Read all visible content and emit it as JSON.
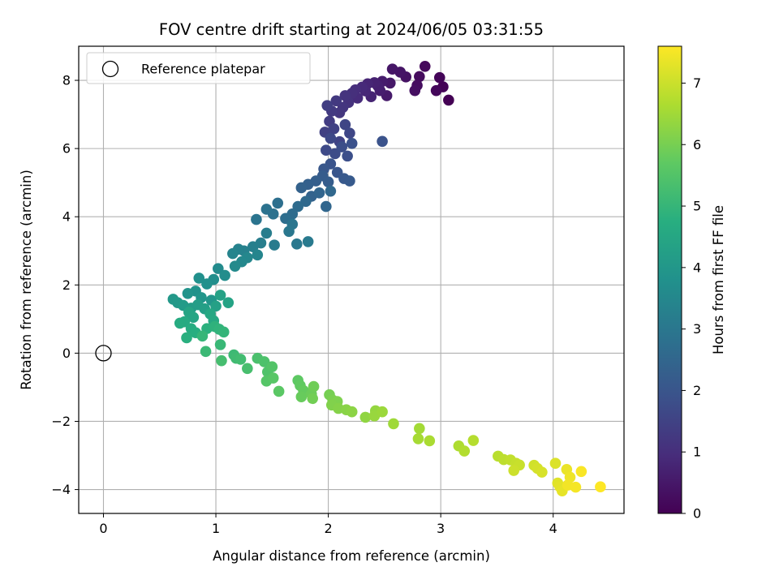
{
  "chart_data": {
    "type": "scatter",
    "title": "FOV centre drift starting at 2024/06/05 03:31:55",
    "xlabel": "Angular distance from reference (arcmin)",
    "ylabel": "Rotation from reference (arcmin)",
    "xlim": [
      -0.22,
      4.63
    ],
    "ylim": [
      -4.7,
      9.0
    ],
    "xticks": [
      "0",
      "1",
      "2",
      "3",
      "4"
    ],
    "yticks": [
      "−4",
      "−2",
      "0",
      "2",
      "4",
      "6",
      "8"
    ],
    "grid": true,
    "legend": {
      "position": "top-left",
      "label": "Reference platepar"
    },
    "colorbar": {
      "label": "Hours from first FF file",
      "range": [
        0,
        7.6
      ],
      "ticks": [
        "0",
        "1",
        "2",
        "3",
        "4",
        "5",
        "6",
        "7"
      ],
      "colormap": "viridis"
    },
    "reference_point": {
      "x": 0,
      "y": 0
    },
    "series": [
      {
        "points": [
          [
            3.07,
            7.42
          ],
          [
            3.02,
            7.81
          ],
          [
            2.99,
            8.08
          ],
          [
            2.96,
            7.7
          ],
          [
            2.86,
            8.41
          ],
          [
            2.81,
            8.11
          ],
          [
            2.79,
            7.85
          ],
          [
            2.77,
            7.7
          ],
          [
            2.69,
            8.1
          ],
          [
            2.64,
            8.24
          ],
          [
            2.57,
            8.33
          ],
          [
            2.55,
            7.92
          ],
          [
            2.52,
            7.55
          ],
          [
            2.48,
            7.97
          ],
          [
            2.46,
            7.7
          ],
          [
            2.44,
            7.84
          ],
          [
            2.41,
            7.93
          ],
          [
            2.38,
            7.52
          ],
          [
            2.35,
            7.9
          ],
          [
            2.33,
            7.69
          ],
          [
            2.3,
            7.8
          ],
          [
            2.26,
            7.48
          ],
          [
            2.24,
            7.72
          ],
          [
            2.21,
            7.62
          ],
          [
            2.18,
            7.35
          ],
          [
            2.15,
            7.55
          ],
          [
            2.13,
            7.21
          ],
          [
            2.1,
            7.05
          ],
          [
            2.07,
            7.4
          ],
          [
            2.03,
            7.1
          ],
          [
            2.01,
            6.8
          ],
          [
            1.99,
            7.26
          ],
          [
            1.97,
            6.48
          ],
          [
            2.05,
            6.58
          ],
          [
            2.1,
            6.2
          ],
          [
            2.15,
            6.7
          ],
          [
            2.19,
            6.45
          ],
          [
            2.02,
            6.3
          ],
          [
            1.98,
            5.95
          ],
          [
            2.06,
            5.85
          ],
          [
            2.12,
            6.05
          ],
          [
            2.17,
            5.78
          ],
          [
            2.21,
            6.15
          ],
          [
            2.48,
            6.21
          ],
          [
            2.02,
            5.55
          ],
          [
            2.08,
            5.3
          ],
          [
            1.96,
            5.4
          ],
          [
            2.14,
            5.12
          ],
          [
            2.19,
            5.05
          ],
          [
            1.95,
            5.2
          ],
          [
            2.0,
            5.02
          ],
          [
            1.89,
            5.05
          ],
          [
            1.82,
            4.95
          ],
          [
            1.76,
            4.85
          ],
          [
            1.85,
            4.6
          ],
          [
            1.92,
            4.7
          ],
          [
            1.98,
            4.3
          ],
          [
            2.02,
            4.75
          ],
          [
            1.8,
            4.45
          ],
          [
            1.73,
            4.3
          ],
          [
            1.68,
            4.08
          ],
          [
            1.62,
            3.95
          ],
          [
            1.55,
            4.4
          ],
          [
            1.51,
            4.08
          ],
          [
            1.45,
            4.22
          ],
          [
            1.36,
            3.92
          ],
          [
            1.68,
            3.78
          ],
          [
            1.65,
            3.57
          ],
          [
            1.72,
            3.2
          ],
          [
            1.82,
            3.27
          ],
          [
            1.52,
            3.17
          ],
          [
            1.45,
            3.52
          ],
          [
            1.4,
            3.23
          ],
          [
            1.33,
            3.12
          ],
          [
            1.25,
            3.0
          ],
          [
            1.2,
            3.05
          ],
          [
            1.15,
            2.92
          ],
          [
            1.37,
            2.88
          ],
          [
            1.28,
            2.8
          ],
          [
            1.23,
            2.68
          ],
          [
            1.17,
            2.55
          ],
          [
            1.02,
            2.48
          ],
          [
            1.08,
            2.28
          ],
          [
            0.98,
            2.16
          ],
          [
            0.85,
            2.2
          ],
          [
            0.92,
            2.03
          ],
          [
            0.82,
            1.82
          ],
          [
            0.75,
            1.75
          ],
          [
            0.87,
            1.63
          ],
          [
            0.96,
            1.55
          ],
          [
            0.62,
            1.58
          ],
          [
            0.66,
            1.48
          ],
          [
            0.71,
            1.4
          ],
          [
            0.78,
            1.32
          ],
          [
            0.84,
            1.42
          ],
          [
            0.9,
            1.3
          ],
          [
            1.0,
            1.38
          ],
          [
            1.04,
            1.7
          ],
          [
            1.11,
            1.48
          ],
          [
            0.76,
            1.2
          ],
          [
            0.8,
            1.05
          ],
          [
            0.95,
            1.15
          ],
          [
            0.98,
            0.95
          ],
          [
            0.72,
            0.92
          ],
          [
            0.68,
            0.88
          ],
          [
            0.78,
            0.72
          ],
          [
            0.82,
            0.6
          ],
          [
            0.74,
            0.45
          ],
          [
            0.92,
            0.72
          ],
          [
            0.99,
            0.78
          ],
          [
            1.03,
            0.7
          ],
          [
            1.07,
            0.62
          ],
          [
            0.88,
            0.5
          ],
          [
            1.04,
            0.25
          ],
          [
            0.91,
            0.05
          ],
          [
            1.16,
            -0.05
          ],
          [
            1.18,
            -0.15
          ],
          [
            1.22,
            -0.18
          ],
          [
            1.05,
            -0.22
          ],
          [
            1.28,
            -0.45
          ],
          [
            1.37,
            -0.15
          ],
          [
            1.43,
            -0.25
          ],
          [
            1.46,
            -0.55
          ],
          [
            1.5,
            -0.4
          ],
          [
            1.45,
            -0.82
          ],
          [
            1.51,
            -0.73
          ],
          [
            1.56,
            -1.12
          ],
          [
            1.73,
            -0.8
          ],
          [
            1.75,
            -0.95
          ],
          [
            1.78,
            -1.1
          ],
          [
            1.76,
            -1.28
          ],
          [
            1.85,
            -1.2
          ],
          [
            1.87,
            -0.98
          ],
          [
            1.86,
            -1.33
          ],
          [
            2.01,
            -1.22
          ],
          [
            2.04,
            -1.38
          ],
          [
            2.08,
            -1.42
          ],
          [
            2.03,
            -1.52
          ],
          [
            2.09,
            -1.62
          ],
          [
            2.16,
            -1.66
          ],
          [
            2.21,
            -1.72
          ],
          [
            2.33,
            -1.88
          ],
          [
            2.42,
            -1.69
          ],
          [
            2.41,
            -1.84
          ],
          [
            2.48,
            -1.72
          ],
          [
            2.58,
            -2.07
          ],
          [
            2.81,
            -2.21
          ],
          [
            2.8,
            -2.51
          ],
          [
            2.9,
            -2.57
          ],
          [
            3.16,
            -2.72
          ],
          [
            3.21,
            -2.87
          ],
          [
            3.29,
            -2.56
          ],
          [
            3.51,
            -3.02
          ],
          [
            3.56,
            -3.12
          ],
          [
            3.62,
            -3.13
          ],
          [
            3.67,
            -3.23
          ],
          [
            3.7,
            -3.28
          ],
          [
            3.65,
            -3.44
          ],
          [
            3.83,
            -3.29
          ],
          [
            3.86,
            -3.38
          ],
          [
            3.9,
            -3.49
          ],
          [
            4.02,
            -3.23
          ],
          [
            4.04,
            -3.81
          ],
          [
            4.06,
            -3.92
          ],
          [
            4.08,
            -4.04
          ],
          [
            4.12,
            -3.41
          ],
          [
            4.15,
            -3.64
          ],
          [
            4.13,
            -3.87
          ],
          [
            4.2,
            -3.93
          ],
          [
            4.25,
            -3.47
          ],
          [
            4.42,
            -3.92
          ]
        ]
      }
    ]
  }
}
